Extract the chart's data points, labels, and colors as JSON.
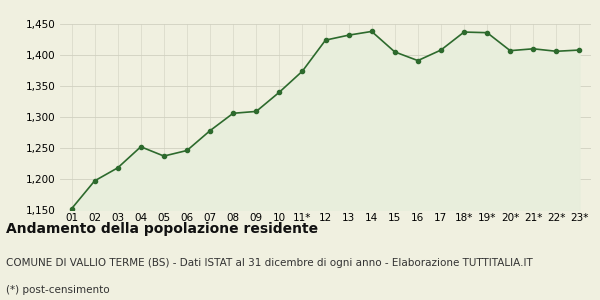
{
  "x_labels": [
    "01",
    "02",
    "03",
    "04",
    "05",
    "06",
    "07",
    "08",
    "09",
    "10",
    "11*",
    "12",
    "13",
    "14",
    "15",
    "16",
    "17",
    "18*",
    "19*",
    "20*",
    "21*",
    "22*",
    "23*"
  ],
  "values": [
    1152,
    1197,
    1218,
    1252,
    1237,
    1246,
    1278,
    1306,
    1309,
    1340,
    1374,
    1424,
    1432,
    1438,
    1405,
    1391,
    1408,
    1437,
    1436,
    1407,
    1410,
    1406,
    1408
  ],
  "line_color": "#2d6a2d",
  "fill_color": "#e8eedc",
  "background_color": "#f0f0e0",
  "title": "Andamento della popolazione residente",
  "subtitle": "COMUNE DI VALLIO TERME (BS) - Dati ISTAT al 31 dicembre di ogni anno - Elaborazione TUTTITALIA.IT",
  "footnote": "(*) post-censimento",
  "ylim": [
    1150,
    1450
  ],
  "yticks": [
    1150,
    1200,
    1250,
    1300,
    1350,
    1400,
    1450
  ],
  "grid_color": "#d0d0c0",
  "title_fontsize": 10,
  "subtitle_fontsize": 7.5,
  "footnote_fontsize": 7.5,
  "tick_fontsize": 7.5
}
